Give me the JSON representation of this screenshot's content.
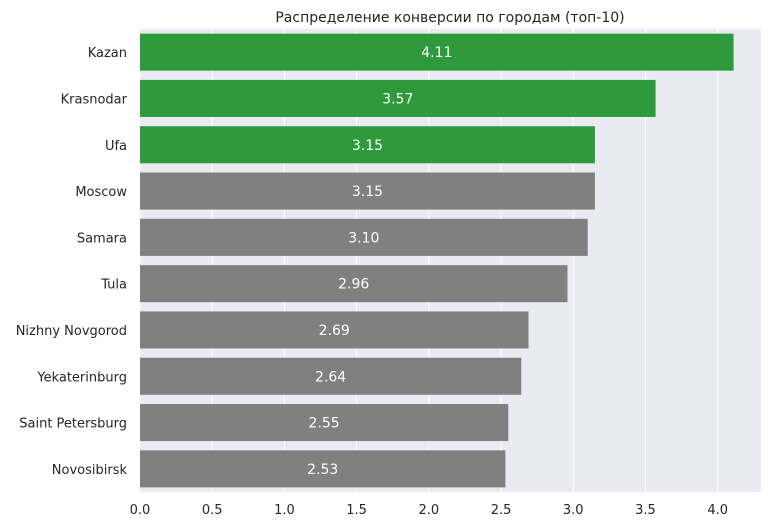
{
  "chart_data": {
    "type": "bar",
    "orientation": "horizontal",
    "title": "Распределение конверсии по городам (топ-10)",
    "xlabel": "",
    "ylabel": "",
    "categories": [
      "Kazan",
      "Krasnodar",
      "Ufa",
      "Moscow",
      "Samara",
      "Tula",
      "Nizhny Novgorod",
      "Yekaterinburg",
      "Saint Petersburg",
      "Novosibirsk"
    ],
    "values": [
      4.11,
      3.57,
      3.15,
      3.15,
      3.1,
      2.96,
      2.69,
      2.64,
      2.55,
      2.53
    ],
    "value_labels": [
      "4.11",
      "3.57",
      "3.15",
      "3.15",
      "3.10",
      "2.96",
      "2.69",
      "2.64",
      "2.55",
      "2.53"
    ],
    "highlighted_top": 3,
    "xlim": [
      0,
      4.3
    ],
    "xticks": [
      0.0,
      0.5,
      1.0,
      1.5,
      2.0,
      2.5,
      3.0,
      3.5,
      4.0
    ],
    "xtick_labels": [
      "0.0",
      "0.5",
      "1.0",
      "1.5",
      "2.0",
      "2.5",
      "3.0",
      "3.5",
      "4.0"
    ],
    "grid": true,
    "colors": {
      "highlight": "#2e9a3c",
      "default": "#808080",
      "background": "#eaeaf2",
      "grid": "#ffffff"
    }
  }
}
